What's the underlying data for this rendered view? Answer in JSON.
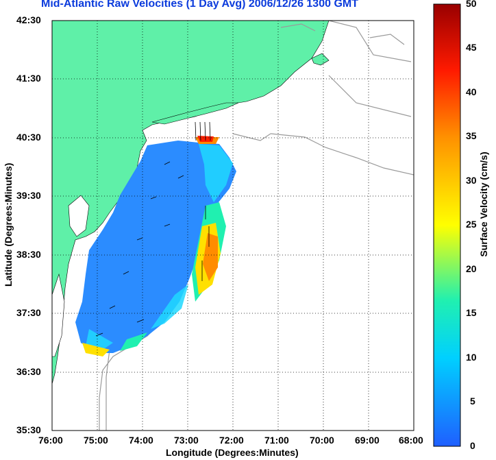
{
  "title": "Mid-Atlantic Raw Velocities (1 Day Avg) 2006/12/26 1300 GMT",
  "map": {
    "xlabel": "Longitude (Degrees:Minutes)",
    "ylabel": "Latitude (Degrees:Minutes)",
    "x_ticks": [
      "76:00",
      "75:00",
      "74:00",
      "73:00",
      "72:00",
      "71:00",
      "70:00",
      "69:00",
      "68:00"
    ],
    "y_ticks": [
      "42:30",
      "41:30",
      "40:30",
      "39:30",
      "38:30",
      "37:30",
      "36:30",
      "35:30"
    ],
    "grid": "dotted",
    "land_color": "#5ff0a8",
    "bathymetry_color": "#9a9a9a"
  },
  "colorbar": {
    "label": "Surface Velocity (cm/s)",
    "ticks": [
      "50",
      "45",
      "40",
      "35",
      "30",
      "25",
      "20",
      "15",
      "10",
      "5",
      "0"
    ],
    "min": 0,
    "max": 50,
    "colors": [
      "#1f5fff",
      "#00d0ff",
      "#20f0b0",
      "#ffff00",
      "#ff9000",
      "#ff1a00",
      "#990000"
    ]
  }
}
